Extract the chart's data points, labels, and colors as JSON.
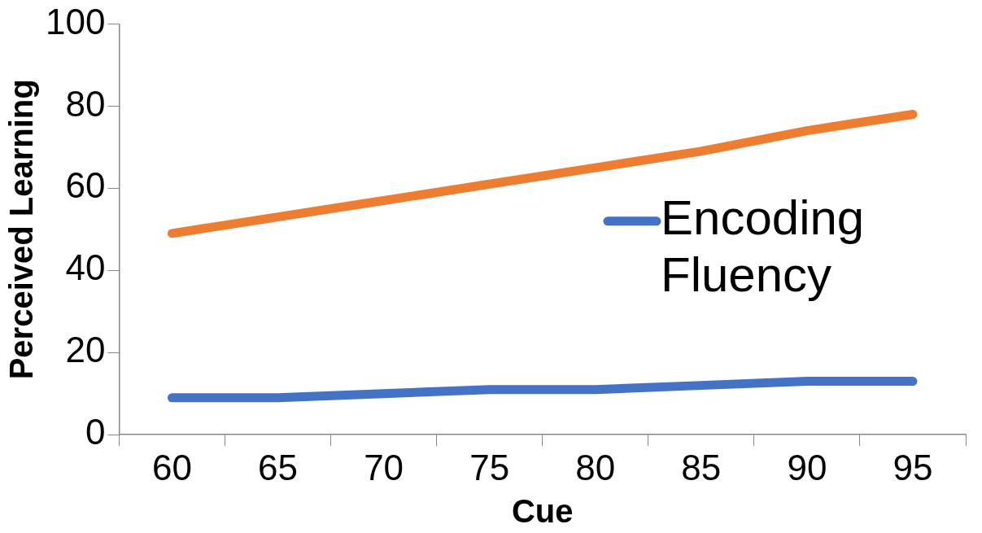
{
  "chart_data": {
    "type": "line",
    "xlabel": "Cue",
    "ylabel": "Perceived Learning",
    "categories": [
      "60",
      "65",
      "70",
      "75",
      "80",
      "85",
      "90",
      "95"
    ],
    "series": [
      {
        "name": "Encoding Fluency",
        "color": "#4472c4",
        "values": [
          9,
          9,
          10,
          11,
          11,
          12,
          13,
          13
        ]
      },
      {
        "color": "#ed7d31",
        "values": [
          49,
          53,
          57,
          61,
          65,
          69,
          74,
          78
        ]
      }
    ],
    "ylim": [
      0,
      100
    ],
    "yticks": [
      0,
      20,
      40,
      60,
      80,
      100
    ],
    "grid": false,
    "legend": "right",
    "marker": "none",
    "line_style": "solid"
  }
}
